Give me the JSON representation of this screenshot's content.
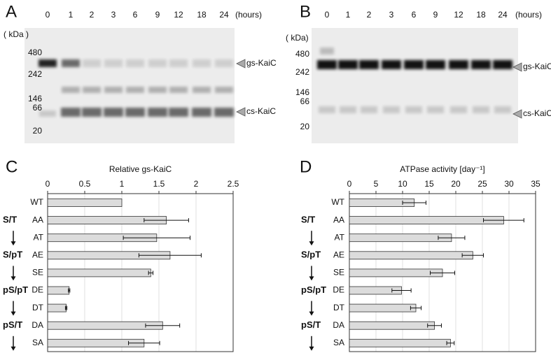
{
  "gels": [
    {
      "panel": "A",
      "lanes": [
        "0",
        "1",
        "2",
        "3",
        "6",
        "9",
        "12",
        "18",
        "24"
      ],
      "unit": "(hours)",
      "kda_label": "( kDa )",
      "markers": [
        "480",
        "242",
        "146",
        "66",
        "20"
      ],
      "bands": [
        "gs-KaiC",
        "cs-KaiC"
      ]
    },
    {
      "panel": "B",
      "lanes": [
        "0",
        "1",
        "2",
        "3",
        "6",
        "9",
        "12",
        "18",
        "24"
      ],
      "unit": "(hours)",
      "kda_label": "( kDa)",
      "markers": [
        "480",
        "242",
        "146",
        "66",
        "20"
      ],
      "bands": [
        "gs-KaiC",
        "cs-KaiC"
      ]
    }
  ],
  "chart_data": [
    {
      "type": "bar",
      "panel": "C",
      "xlabel": "Relative gs-KaiC",
      "categories": [
        "WT",
        "AA",
        "AT",
        "AE",
        "SE",
        "DE",
        "DT",
        "DA",
        "SA"
      ],
      "values": [
        1.0,
        1.6,
        1.47,
        1.65,
        1.39,
        0.29,
        0.25,
        1.55,
        1.3
      ],
      "errors": [
        null,
        0.3,
        0.45,
        0.42,
        0.03,
        0.01,
        0.01,
        0.23,
        0.21
      ],
      "color": "#dcdcdc",
      "xlim": [
        0,
        2.5
      ],
      "xticks": [
        0,
        0.5,
        1,
        1.5,
        2,
        2.5
      ],
      "grid": true,
      "group_labels": [
        "S/T",
        "S/pT",
        "pS/pT",
        "pS/T"
      ]
    },
    {
      "type": "bar",
      "panel": "D",
      "xlabel": "ATPase activity [day⁻¹]",
      "categories": [
        "WT",
        "AA",
        "AT",
        "AE",
        "SE",
        "DE",
        "DT",
        "DA",
        "SA"
      ],
      "values": [
        12.2,
        29,
        19.2,
        23.2,
        17.5,
        9.8,
        12.5,
        16,
        19
      ],
      "errors": [
        2.2,
        3.8,
        2.5,
        2,
        2.3,
        1.8,
        1,
        1.3,
        0.7
      ],
      "color": "#dcdcdc",
      "xlim": [
        0,
        35
      ],
      "xticks": [
        0,
        5,
        10,
        15,
        20,
        25,
        30,
        35
      ],
      "grid": true,
      "group_labels": [
        "S/T",
        "S/pT",
        "pS/pT",
        "pS/T"
      ]
    }
  ]
}
